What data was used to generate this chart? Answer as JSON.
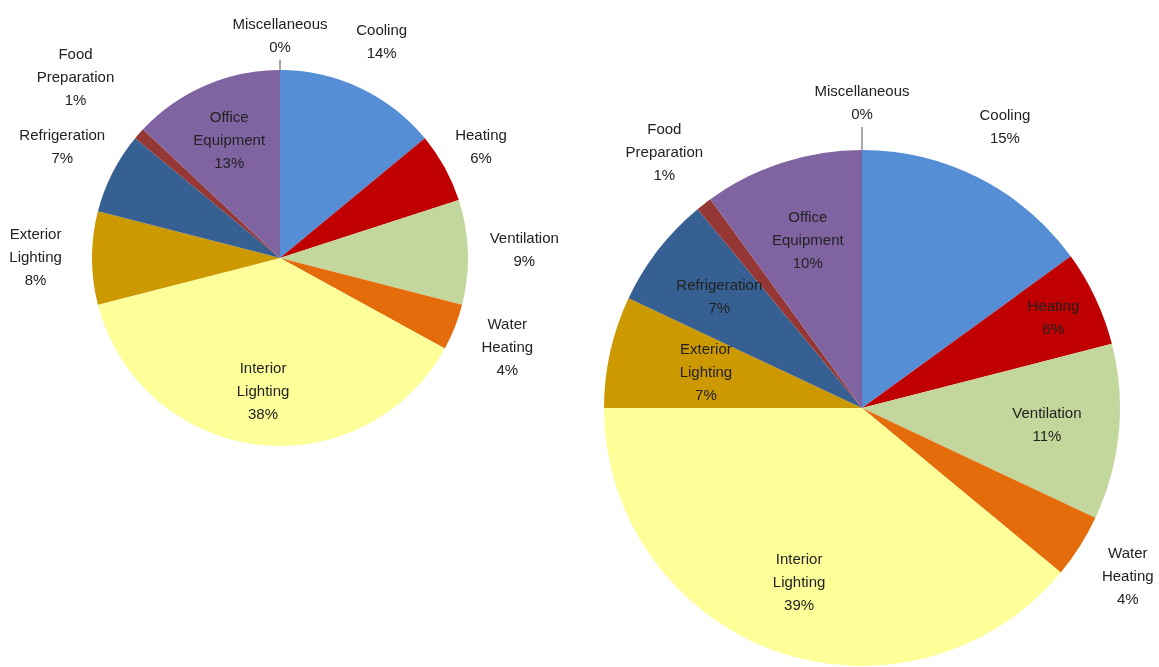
{
  "chart_data": [
    {
      "type": "pie",
      "categories": [
        "Cooling",
        "Heating",
        "Ventilation",
        "Water Heating",
        "Interior Lighting",
        "Exterior Lighting",
        "Refrigeration",
        "Food Preparation",
        "Office Equipment",
        "Miscellaneous"
      ],
      "values": [
        14,
        6,
        9,
        4,
        38,
        8,
        7,
        1,
        13,
        0
      ],
      "value_labels": [
        "14%",
        "6%",
        "9%",
        "4%",
        "38%",
        "8%",
        "7%",
        "1%",
        "13%",
        "0%"
      ],
      "colors": [
        "#558ed5",
        "#c00000",
        "#c3d69b",
        "#e46c0a",
        "#ffff99",
        "#cc9900",
        "#376092",
        "#953735",
        "#8064a2",
        "#4bacc6"
      ],
      "legend": false
    },
    {
      "type": "pie",
      "categories": [
        "Cooling",
        "Heating",
        "Ventilation",
        "Water Heating",
        "Interior Lighting",
        "Exterior Lighting",
        "Refrigeration",
        "Food Preparation",
        "Office Equipment",
        "Miscellaneous"
      ],
      "values": [
        15,
        6,
        11,
        4,
        39,
        7,
        7,
        1,
        10,
        0
      ],
      "value_labels": [
        "15%",
        "6%",
        "11%",
        "4%",
        "39%",
        "7%",
        "7%",
        "1%",
        "10%",
        "0%"
      ],
      "colors": [
        "#558ed5",
        "#c00000",
        "#c3d69b",
        "#e46c0a",
        "#ffff99",
        "#cc9900",
        "#376092",
        "#953735",
        "#8064a2",
        "#4bacc6"
      ],
      "legend": false
    }
  ]
}
